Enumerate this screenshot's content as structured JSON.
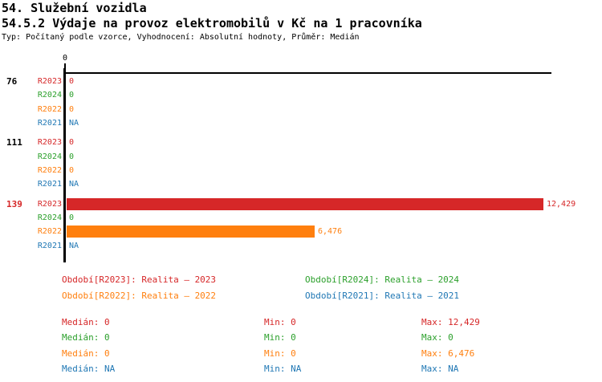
{
  "header": {
    "title_line1": "54. Služební vozidla",
    "title_line2": "54.5.2 Výdaje na provoz elektromobilů v Kč na 1 pracovníka",
    "subtitle": "Typ: Počítaný podle vzorce, Vyhodnocení: Absolutní hodnoty, Průměr: Medián"
  },
  "colors": {
    "R2023": "#d62728",
    "R2024": "#2ca02c",
    "R2022": "#ff7f0e",
    "R2021": "#1f77b4",
    "axis": "#000000",
    "group_label_default": "#000000",
    "group_label_highlight": "#d62728"
  },
  "chart_data": {
    "type": "bar",
    "orientation": "horizontal",
    "title": "54.5.2 Výdaje na provoz elektromobilů v Kč na 1 pracovníka",
    "axis": {
      "tick_labels": [
        "0"
      ],
      "xlim": [
        0,
        12429
      ],
      "grid": false
    },
    "series_order": [
      "R2023",
      "R2024",
      "R2022",
      "R2021"
    ],
    "groups": [
      {
        "label": "76",
        "highlight": false,
        "rows": [
          {
            "series": "R2023",
            "value": 0,
            "display": "0"
          },
          {
            "series": "R2024",
            "value": 0,
            "display": "0"
          },
          {
            "series": "R2022",
            "value": 0,
            "display": "0"
          },
          {
            "series": "R2021",
            "value": null,
            "display": "NA"
          }
        ]
      },
      {
        "label": "111",
        "highlight": false,
        "rows": [
          {
            "series": "R2023",
            "value": 0,
            "display": "0"
          },
          {
            "series": "R2024",
            "value": 0,
            "display": "0"
          },
          {
            "series": "R2022",
            "value": 0,
            "display": "0"
          },
          {
            "series": "R2021",
            "value": null,
            "display": "NA"
          }
        ]
      },
      {
        "label": "139",
        "highlight": true,
        "rows": [
          {
            "series": "R2023",
            "value": 12429,
            "display": "12,429"
          },
          {
            "series": "R2024",
            "value": 0,
            "display": "0"
          },
          {
            "series": "R2022",
            "value": 6476,
            "display": "6,476"
          },
          {
            "series": "R2021",
            "value": null,
            "display": "NA"
          }
        ]
      }
    ],
    "legend_position": "bottom",
    "legend": [
      {
        "series": "R2023",
        "label": "Období[R2023]: Realita – 2023"
      },
      {
        "series": "R2024",
        "label": "Období[R2024]: Realita – 2024"
      },
      {
        "series": "R2022",
        "label": "Období[R2022]: Realita – 2022"
      },
      {
        "series": "R2021",
        "label": "Období[R2021]: Realita – 2021"
      }
    ],
    "stats_labels": {
      "median": "Medián",
      "min": "Min",
      "max": "Max"
    },
    "stats": [
      {
        "series": "R2023",
        "median": "0",
        "min": "0",
        "max": "12,429"
      },
      {
        "series": "R2024",
        "median": "0",
        "min": "0",
        "max": "0"
      },
      {
        "series": "R2022",
        "median": "0",
        "min": "0",
        "max": "6,476"
      },
      {
        "series": "R2021",
        "median": "NA",
        "min": "NA",
        "max": "NA"
      }
    ]
  }
}
